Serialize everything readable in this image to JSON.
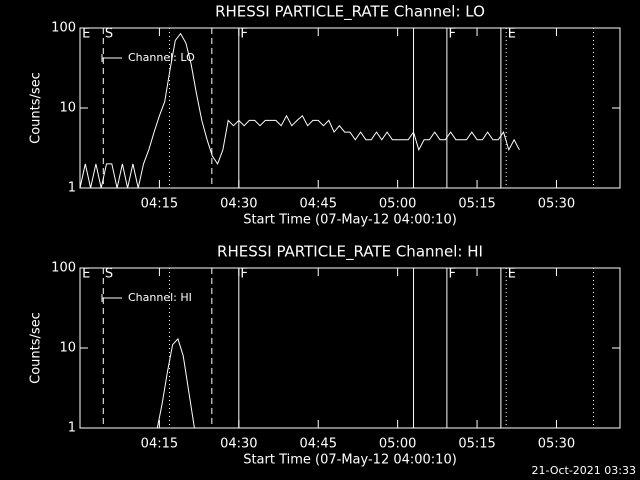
{
  "chart_data": [
    {
      "type": "line",
      "title": "RHESSI PARTICLE_RATE Channel: LO",
      "ylabel": "Counts/sec",
      "xlabel": "Start Time (07-May-12 04:00:10)",
      "log_y": true,
      "ylim": [
        1,
        100
      ],
      "yticks": [
        1,
        10,
        100
      ],
      "xlim": [
        0,
        102
      ],
      "xticks": [
        {
          "value": 15,
          "label": "04:15"
        },
        {
          "value": 30,
          "label": "04:30"
        },
        {
          "value": 45,
          "label": "04:45"
        },
        {
          "value": 60,
          "label": "05:00"
        },
        {
          "value": 75,
          "label": "05:15"
        },
        {
          "value": 90,
          "label": "05:30"
        }
      ],
      "event_lines": [
        {
          "x": 4.4,
          "style": "dashed"
        },
        {
          "x": 16.9,
          "style": "dotted"
        },
        {
          "x": 24.9,
          "style": "dashed"
        },
        {
          "x": 30,
          "style": "solid"
        },
        {
          "x": 63,
          "style": "solid"
        },
        {
          "x": 69.3,
          "style": "solid"
        },
        {
          "x": 79.5,
          "style": "solid"
        },
        {
          "x": 80.5,
          "style": "dotted"
        },
        {
          "x": 97,
          "style": "dotted"
        }
      ],
      "event_labels": [
        {
          "text": "E",
          "x": 0.4
        },
        {
          "text": "S",
          "x": 4.7
        },
        {
          "text": "F",
          "x": 30.3
        },
        {
          "text": "F",
          "x": 69.6
        },
        {
          "text": "E",
          "x": 80.8
        }
      ],
      "series": [
        {
          "name": "Channel: LO",
          "color": "#ffffff",
          "x": [
            0,
            1,
            2,
            3,
            4,
            5,
            6,
            7,
            8,
            9,
            10,
            11,
            12,
            13,
            14,
            15,
            16,
            17,
            18,
            19,
            20,
            21,
            22,
            23,
            24,
            25,
            26,
            27,
            28,
            29,
            30,
            31,
            32,
            33,
            34,
            35,
            36,
            37,
            38,
            39,
            40,
            41,
            42,
            43,
            44,
            45,
            46,
            47,
            48,
            49,
            50,
            51,
            52,
            53,
            54,
            55,
            56,
            57,
            58,
            59,
            60,
            61,
            62,
            63,
            64,
            65,
            66,
            67,
            68,
            69,
            70,
            71,
            72,
            73,
            74,
            75,
            76,
            77,
            78,
            79,
            80,
            81,
            82,
            83
          ],
          "values": [
            1,
            2,
            1,
            2,
            1,
            2,
            2,
            1,
            2,
            1,
            2,
            1,
            2,
            3,
            5,
            8,
            12,
            30,
            70,
            85,
            65,
            35,
            15,
            7,
            4,
            2.5,
            2,
            3,
            7,
            6,
            7,
            6,
            7,
            7,
            6,
            7,
            7,
            7,
            6,
            8,
            6,
            7,
            8,
            6,
            7,
            7,
            6,
            7,
            5,
            6,
            5,
            5,
            4,
            5,
            4,
            4,
            5,
            4,
            5,
            4,
            4,
            4,
            4,
            5,
            3,
            4,
            4,
            5,
            4,
            4,
            5,
            4,
            4,
            4,
            5,
            4,
            4,
            5,
            4,
            4,
            5,
            3,
            4,
            3
          ]
        }
      ]
    },
    {
      "type": "line",
      "title": "RHESSI PARTICLE_RATE Channel: HI",
      "ylabel": "Counts/sec",
      "xlabel": "Start Time (07-May-12 04:00:10)",
      "log_y": true,
      "ylim": [
        1,
        100
      ],
      "yticks": [
        1,
        10,
        100
      ],
      "xlim": [
        0,
        102
      ],
      "xticks": [
        {
          "value": 15,
          "label": "04:15"
        },
        {
          "value": 30,
          "label": "04:30"
        },
        {
          "value": 45,
          "label": "04:45"
        },
        {
          "value": 60,
          "label": "05:00"
        },
        {
          "value": 75,
          "label": "05:15"
        },
        {
          "value": 90,
          "label": "05:30"
        }
      ],
      "event_lines": [
        {
          "x": 4.4,
          "style": "dashed"
        },
        {
          "x": 16.9,
          "style": "dotted"
        },
        {
          "x": 24.9,
          "style": "dashed"
        },
        {
          "x": 30,
          "style": "solid"
        },
        {
          "x": 63,
          "style": "solid"
        },
        {
          "x": 69.3,
          "style": "solid"
        },
        {
          "x": 79.5,
          "style": "solid"
        },
        {
          "x": 80.5,
          "style": "dotted"
        },
        {
          "x": 97,
          "style": "dotted"
        }
      ],
      "event_labels": [
        {
          "text": "E",
          "x": 0.4
        },
        {
          "text": "S",
          "x": 4.7
        },
        {
          "text": "F",
          "x": 30.3
        },
        {
          "text": "F",
          "x": 69.6
        },
        {
          "text": "E",
          "x": 80.8
        }
      ],
      "series": [
        {
          "name": "Channel: HI",
          "color": "#ffffff",
          "x": [
            14.6,
            15.5,
            16.5,
            17.5,
            18.5,
            19.5,
            20.5,
            21.6
          ],
          "values": [
            1,
            2,
            5,
            11,
            13,
            8,
            3,
            1
          ]
        }
      ]
    }
  ],
  "footer": "21-Oct-2021 03:33"
}
